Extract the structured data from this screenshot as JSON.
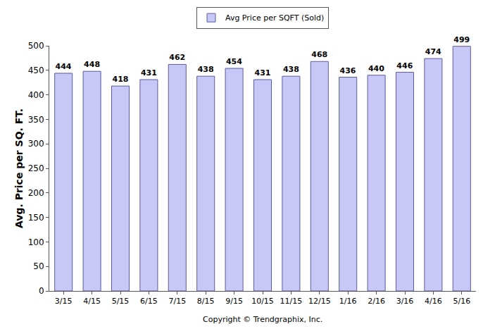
{
  "chart_data": {
    "type": "bar",
    "y_label": "Avg. Price per SQ. FT.",
    "annotation": "Copyright © Trendgraphix, Inc.",
    "categories": [
      "3/15",
      "4/15",
      "5/15",
      "6/15",
      "7/15",
      "8/15",
      "9/15",
      "10/15",
      "11/15",
      "12/15",
      "1/16",
      "2/16",
      "3/16",
      "4/16",
      "5/16"
    ],
    "series": [
      {
        "name": "Avg Price per SQFT (Sold)",
        "color": "#c8c8f8",
        "values": [
          444,
          448,
          418,
          431,
          462,
          438,
          454,
          431,
          438,
          468,
          436,
          440,
          446,
          474,
          499
        ]
      }
    ],
    "ylim": [
      0,
      500
    ],
    "yticks": [
      0,
      50,
      100,
      150,
      200,
      250,
      300,
      350,
      400,
      450,
      500
    ],
    "grid": false,
    "legend": "top",
    "data_labels": true
  }
}
